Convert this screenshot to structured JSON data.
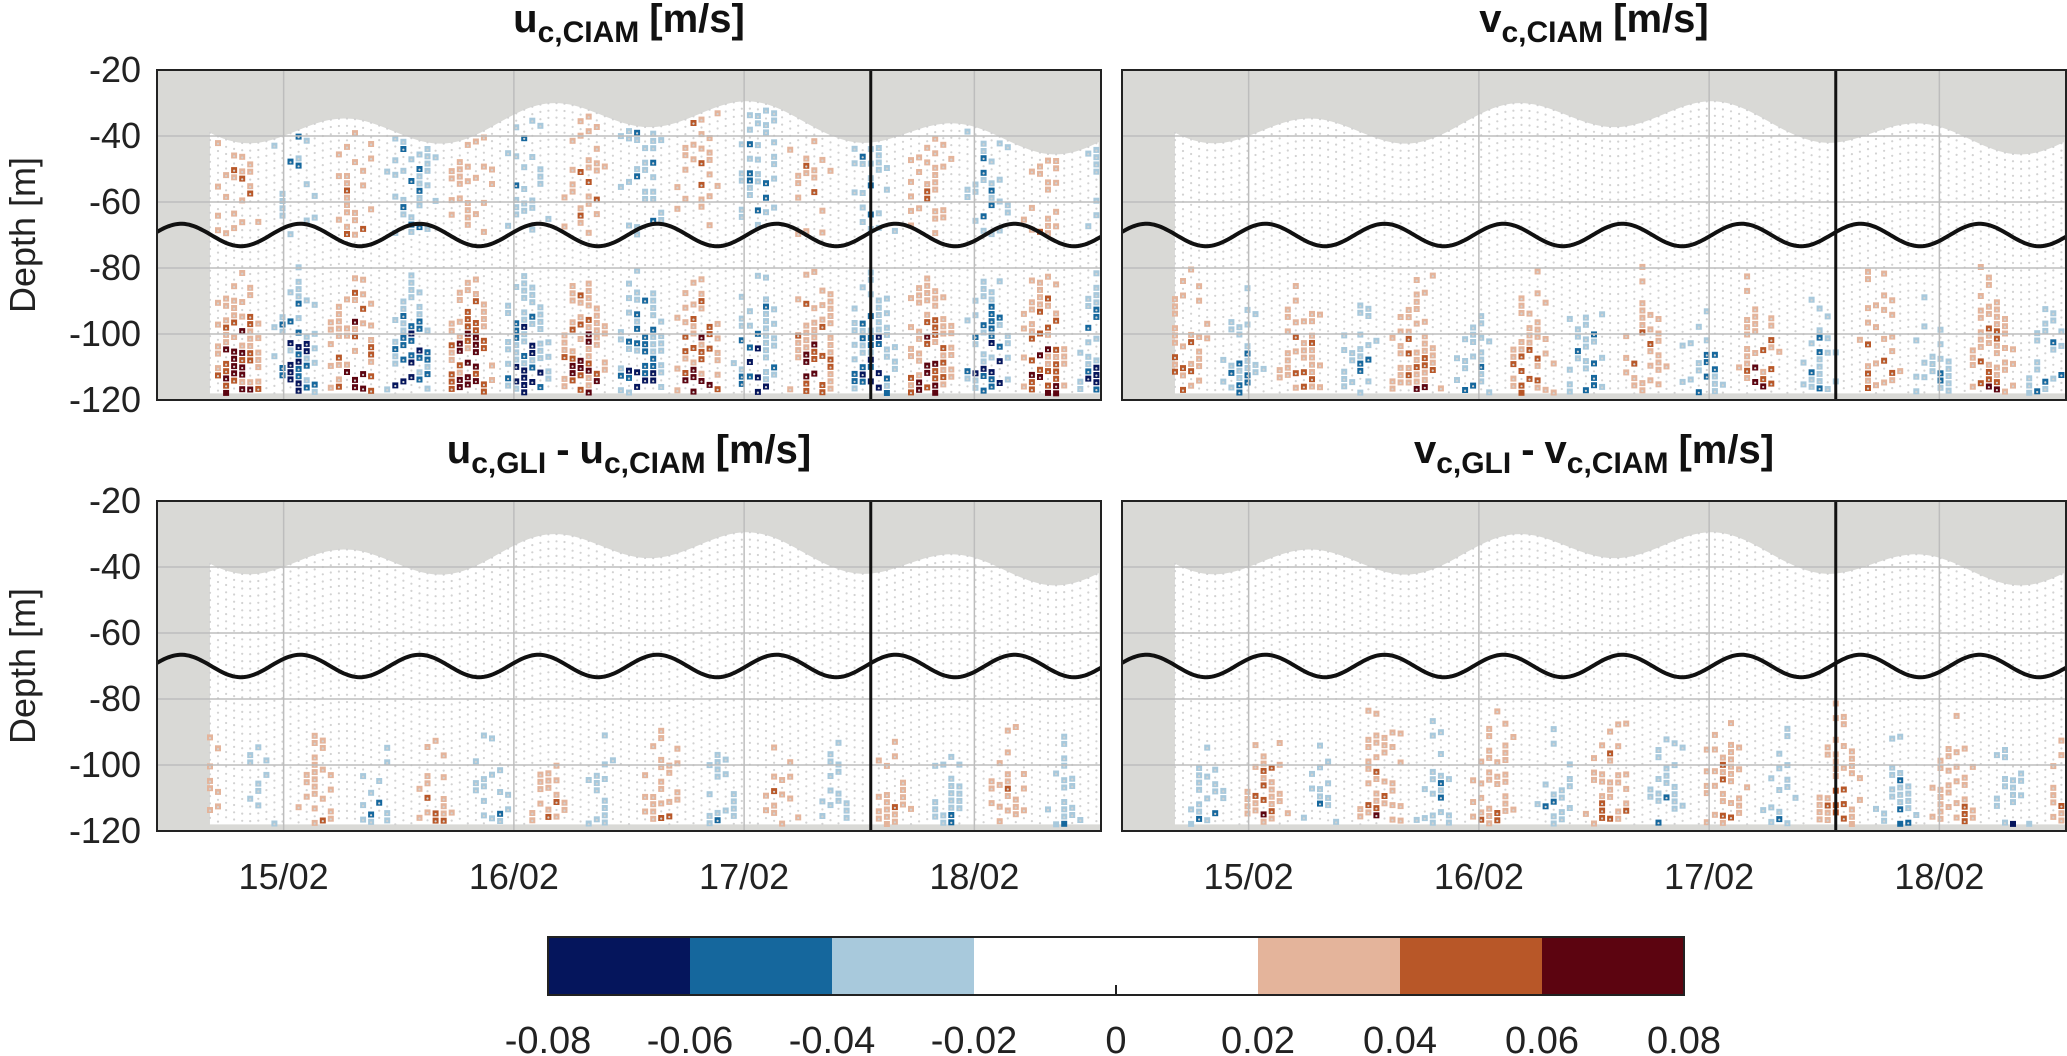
{
  "chart_data": {
    "type": "heatmap",
    "description_note": "Four-panel scatter-heatmap of velocity differences versus time and depth",
    "x_tick_labels": [
      "15/02",
      "16/02",
      "17/02",
      "18/02"
    ],
    "x_range_days": [
      14.45,
      18.55
    ],
    "x_tick_days": [
      15,
      16,
      17,
      18
    ],
    "gap_line_day": 17.55,
    "y_axis": {
      "label": "Depth [m]",
      "range": [
        -120,
        -20
      ],
      "ticks": [
        -20,
        -40,
        -60,
        -80,
        -100,
        -120
      ],
      "tick_labels": [
        "-20",
        "-40",
        "-60",
        "-80",
        "-100",
        "-120"
      ]
    },
    "panels": [
      {
        "id": "u_ciam",
        "title": {
          "main1": "u",
          "sub1": "c,CIAM",
          "main2": "",
          "sub2": "",
          "unit": "[m/s]"
        },
        "black_line": {
          "type": "tide",
          "mean_depth": -70,
          "amplitude": 3.4,
          "period_days": 0.517,
          "phase": 0.6
        },
        "upper_bias": 0.3,
        "lower_bias": 0.05,
        "intensity": 0.9
      },
      {
        "id": "v_ciam",
        "title": {
          "main1": "v",
          "sub1": "c,CIAM",
          "main2": "",
          "sub2": "",
          "unit": "[m/s]"
        },
        "black_line": {
          "type": "tide",
          "mean_depth": -70,
          "amplitude": 3.4,
          "period_days": 0.517,
          "phase": 0.6
        },
        "upper_bias": 0.05,
        "lower_bias": 0.35,
        "intensity": 0.55
      },
      {
        "id": "u_diff",
        "title": {
          "main1": "u",
          "sub1": "c,GLI",
          "main2": "u",
          "sub2": "c,CIAM",
          "unit": "[m/s]"
        },
        "black_line": {
          "type": "tide",
          "mean_depth": -70,
          "amplitude": 3.4,
          "period_days": 0.517,
          "phase": 0.6
        },
        "upper_bias": 0.0,
        "lower_bias": 0.1,
        "intensity": 0.45
      },
      {
        "id": "v_diff",
        "title": {
          "main1": "v",
          "sub1": "c,GLI",
          "main2": "v",
          "sub2": "c,CIAM",
          "unit": "[m/s]"
        },
        "black_line": {
          "type": "tide",
          "mean_depth": -70,
          "amplitude": 3.4,
          "period_days": 0.517,
          "phase": 0.6
        },
        "upper_bias": 0.05,
        "lower_bias": 0.3,
        "intensity": 0.5
      }
    ],
    "colorbar": {
      "boundaries": [
        -0.08,
        -0.06,
        -0.04,
        -0.02,
        0,
        0.02,
        0.04,
        0.06,
        0.08
      ],
      "tick_labels": [
        "-0.08",
        "-0.06",
        "-0.04",
        "-0.02",
        "0",
        "0.02",
        "0.04",
        "0.06",
        "0.08"
      ],
      "colors": [
        "#05155c",
        "#15679d",
        "#a8c9dc",
        "#ffffff",
        "#ffffff",
        "#e4b49b",
        "#b85728",
        "#5c0410"
      ]
    },
    "colors": {
      "land_gray": "#d9d9d6",
      "grid_dot": "#c9c9c9",
      "axis": "#222222",
      "tide_line": "#111111"
    }
  }
}
